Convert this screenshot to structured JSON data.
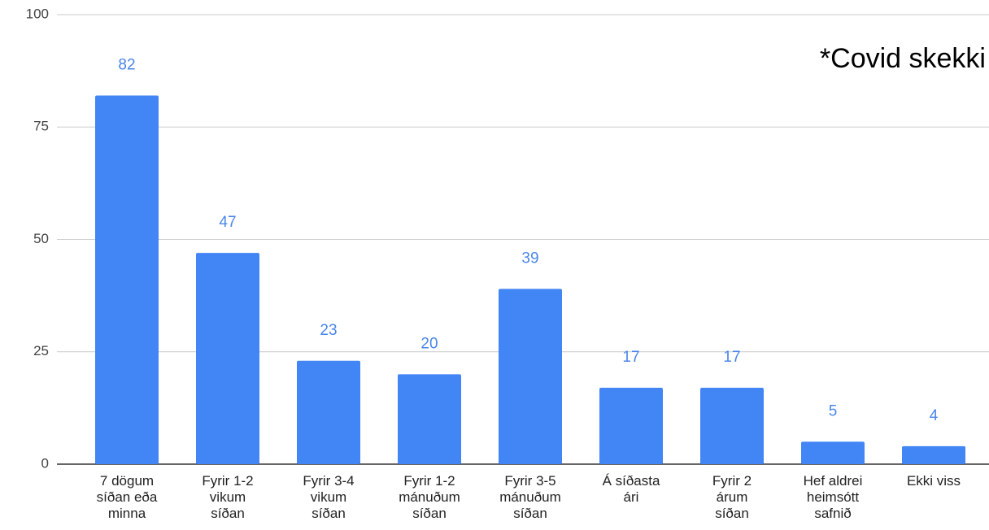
{
  "chart_data": {
    "type": "bar",
    "annotation": "*Covid skekki",
    "categories": [
      "7 dögum síðan eða minna",
      "Fyrir 1-2 vikum síðan",
      "Fyrir 3-4 vikum síðan",
      "Fyrir 1-2 mánuðum síðan",
      "Fyrir 3-5 mánuðum síðan",
      "Á síðasta ári",
      "Fyrir 2 árum síðan",
      "Hef aldrei heimsótt safnið",
      "Ekki viss"
    ],
    "values": [
      82,
      47,
      23,
      20,
      39,
      17,
      17,
      5,
      4
    ],
    "color": "#4285f4",
    "label_color": "#4a86e8",
    "ylim": [
      0,
      100
    ],
    "yticks": [
      0,
      25,
      50,
      75,
      100
    ],
    "grid": true
  }
}
